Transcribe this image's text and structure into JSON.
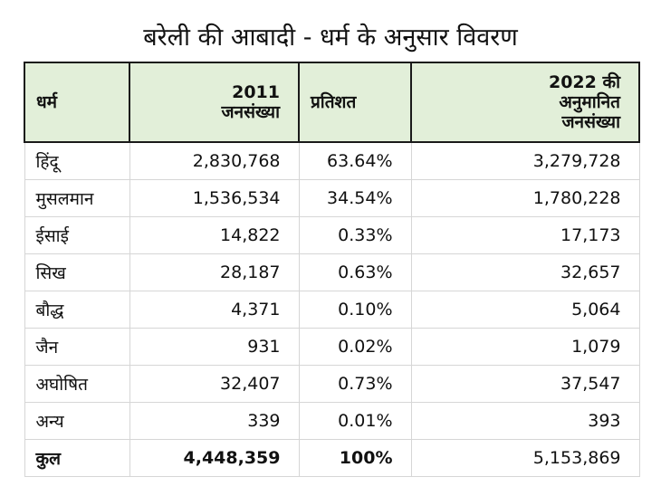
{
  "title": "बरेली की आबादी - धर्म के अनुसार विवरण",
  "columns": {
    "religion": "धर्म",
    "pop2011_line1": "2011",
    "pop2011_line2": "जनसंख्या",
    "percent": "प्रतिशत",
    "pop2022_line1": "2022 की",
    "pop2022_line2": "अनुमानित",
    "pop2022_line3": "जनसंख्या"
  },
  "rows": [
    {
      "religion": "हिंदू",
      "pop2011": "2,830,768",
      "percent": "63.64%",
      "pop2022": "3,279,728"
    },
    {
      "religion": "मुसलमान",
      "pop2011": "1,536,534",
      "percent": "34.54%",
      "pop2022": "1,780,228"
    },
    {
      "religion": "ईसाई",
      "pop2011": "14,822",
      "percent": "0.33%",
      "pop2022": "17,173"
    },
    {
      "religion": "सिख",
      "pop2011": "28,187",
      "percent": "0.63%",
      "pop2022": "32,657"
    },
    {
      "religion": "बौद्ध",
      "pop2011": "4,371",
      "percent": "0.10%",
      "pop2022": "5,064"
    },
    {
      "religion": "जैन",
      "pop2011": "931",
      "percent": "0.02%",
      "pop2022": "1,079"
    },
    {
      "religion": "अघोषित",
      "pop2011": "32,407",
      "percent": "0.73%",
      "pop2022": "37,547"
    },
    {
      "religion": "अन्य",
      "pop2011": "339",
      "percent": "0.01%",
      "pop2022": "393"
    }
  ],
  "total": {
    "religion": "कुल",
    "pop2011": "4,448,359",
    "percent": "100%",
    "pop2022": "5,153,869"
  },
  "colors": {
    "header_bg": "#e2efd9",
    "border": "#1a1a1a",
    "grid": "#d6d6d6"
  }
}
